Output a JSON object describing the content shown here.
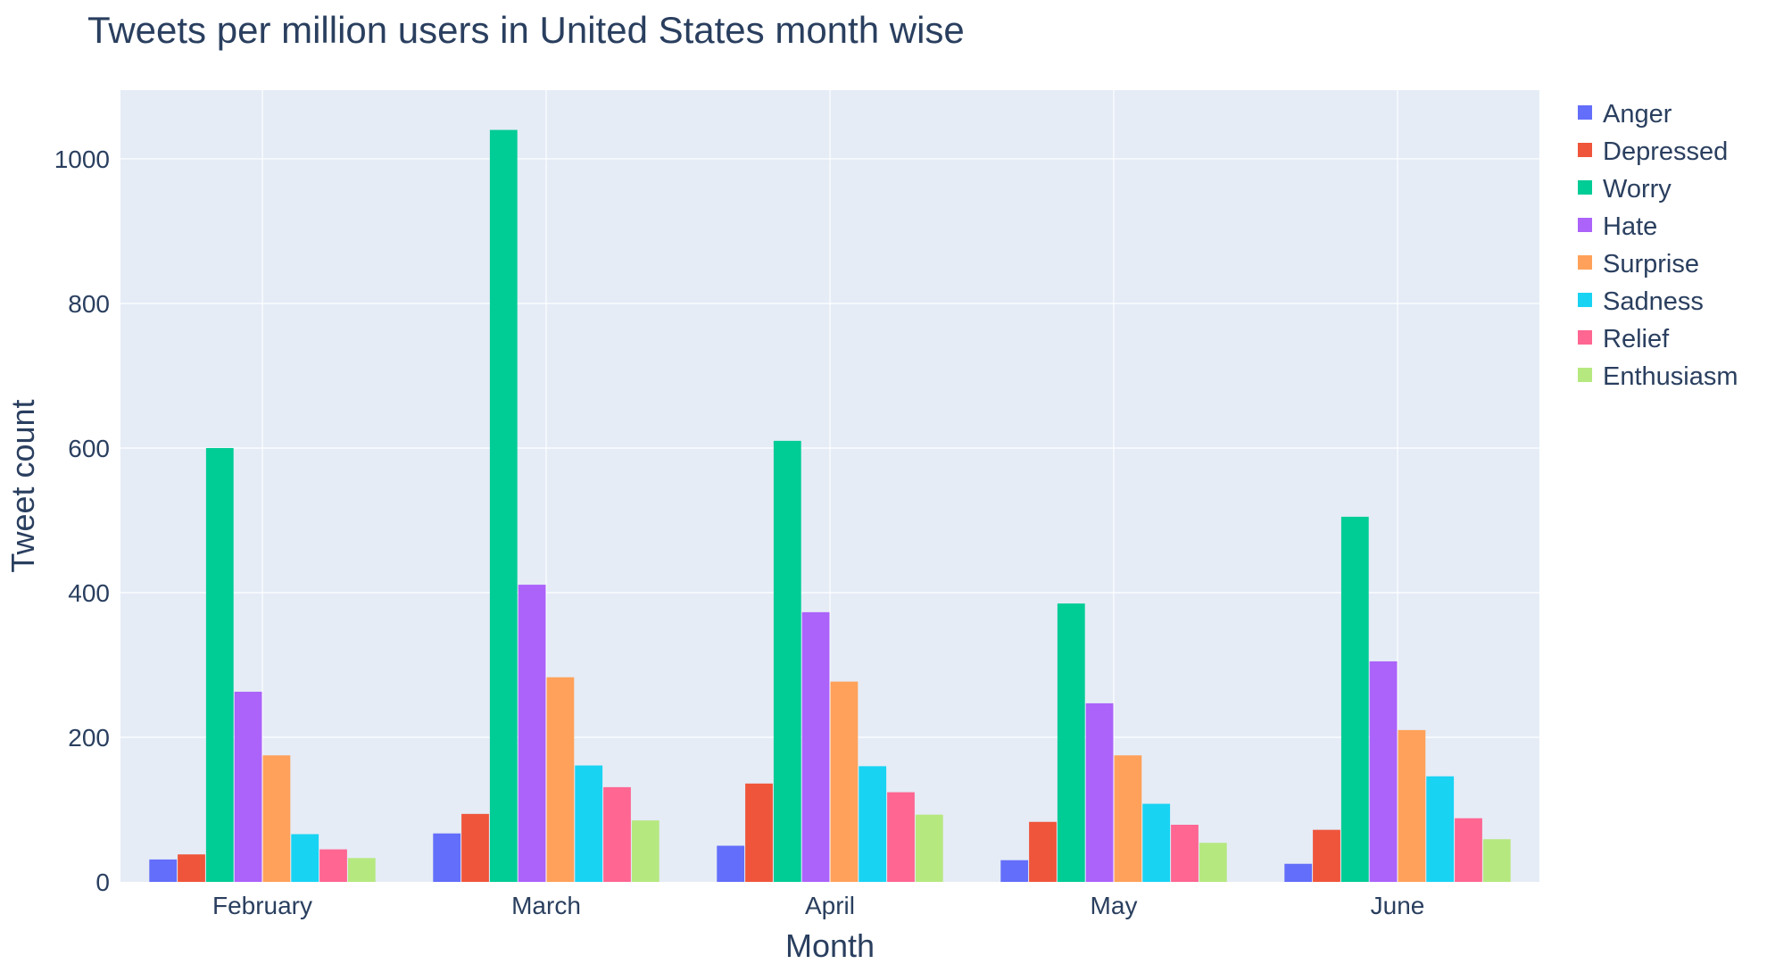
{
  "chart_data": {
    "type": "bar",
    "title": "Tweets per million users in United States month wise",
    "xlabel": "Month",
    "ylabel": "Tweet count",
    "categories": [
      "February",
      "March",
      "April",
      "May",
      "June"
    ],
    "ylim": [
      0,
      1095
    ],
    "yticks": [
      0,
      200,
      400,
      600,
      800,
      1000
    ],
    "grid": true,
    "legend_position": "top-right",
    "plot_background": "#e5ecf6",
    "grid_color": "#ffffff",
    "text_color": "#2a3f5f",
    "series": [
      {
        "name": "Anger",
        "color": "#636efa",
        "values": [
          31,
          67,
          50,
          30,
          25
        ]
      },
      {
        "name": "Depressed",
        "color": "#ef553b",
        "values": [
          38,
          94,
          136,
          83,
          72
        ]
      },
      {
        "name": "Worry",
        "color": "#00cc96",
        "values": [
          600,
          1040,
          610,
          385,
          505
        ]
      },
      {
        "name": "Hate",
        "color": "#ab63fa",
        "values": [
          263,
          411,
          373,
          247,
          305
        ]
      },
      {
        "name": "Surprise",
        "color": "#ffa15a",
        "values": [
          175,
          283,
          277,
          175,
          210
        ]
      },
      {
        "name": "Sadness",
        "color": "#19d3f3",
        "values": [
          66,
          161,
          160,
          108,
          146
        ]
      },
      {
        "name": "Relief",
        "color": "#ff6692",
        "values": [
          45,
          131,
          124,
          79,
          88
        ]
      },
      {
        "name": "Enthusiasm",
        "color": "#b6e880",
        "values": [
          33,
          85,
          93,
          54,
          59
        ]
      }
    ]
  }
}
